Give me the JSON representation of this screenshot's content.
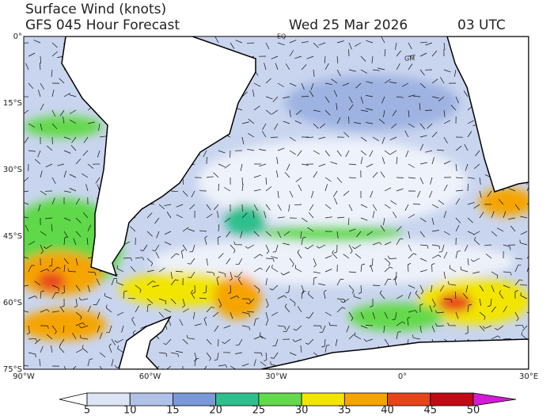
{
  "header": {
    "title": "Surface Wind (knots)",
    "subtitle": "GFS 045 Hour Forecast",
    "date": "Wed 25 Mar 2026",
    "time": "03 UTC"
  },
  "map": {
    "lat_labels": [
      "0°",
      "15°S",
      "30°S",
      "45°S",
      "60°S",
      "75°S"
    ],
    "lon_labels": [
      "90°W",
      "60°W",
      "30°W",
      "0°",
      "30°E"
    ],
    "annotations": [
      "EQ",
      "GM"
    ]
  },
  "colorbar": {
    "labels": [
      "5",
      "10",
      "15",
      "20",
      "25",
      "30",
      "35",
      "40",
      "45",
      "50"
    ],
    "colors": [
      "#ffffff",
      "#dde5f5",
      "#b1c2e8",
      "#7b98d8",
      "#2fbf8e",
      "#63d94c",
      "#f2e500",
      "#f5a400",
      "#e8441c",
      "#c20a14",
      "#d41cd4"
    ]
  }
}
